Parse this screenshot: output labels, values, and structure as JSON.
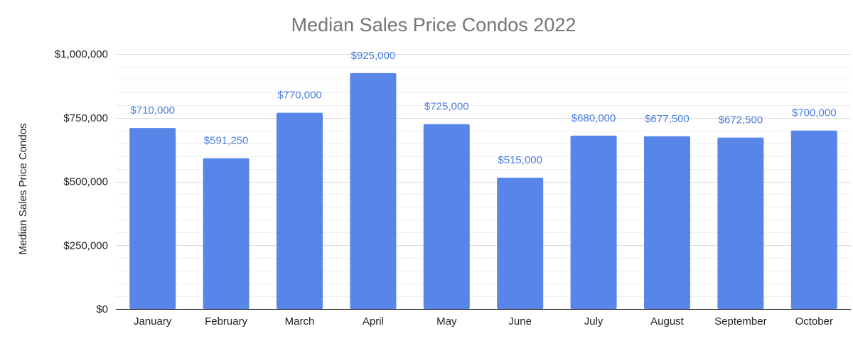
{
  "chart_data": {
    "type": "bar",
    "title": "Median Sales Price Condos 2022",
    "xlabel": "",
    "ylabel": "Median Sales Price Condos",
    "categories": [
      "January",
      "February",
      "March",
      "April",
      "May",
      "June",
      "July",
      "August",
      "September",
      "October"
    ],
    "values": [
      710000,
      591250,
      770000,
      925000,
      725000,
      515000,
      680000,
      677500,
      672500,
      700000
    ],
    "data_labels": [
      "$710,000",
      "$591,250",
      "$770,000",
      "$925,000",
      "$725,000",
      "$515,000",
      "$680,000",
      "$677,500",
      "$672,500",
      "$700,000"
    ],
    "ylim": [
      0,
      1000000
    ],
    "yticks": [
      0,
      250000,
      500000,
      750000,
      1000000
    ],
    "ytick_labels": [
      "$0",
      "$250,000",
      "$500,000",
      "$750,000",
      "$1,000,000"
    ],
    "grid": true,
    "bar_color": "#5786e8",
    "label_color": "#4a7ce0"
  }
}
